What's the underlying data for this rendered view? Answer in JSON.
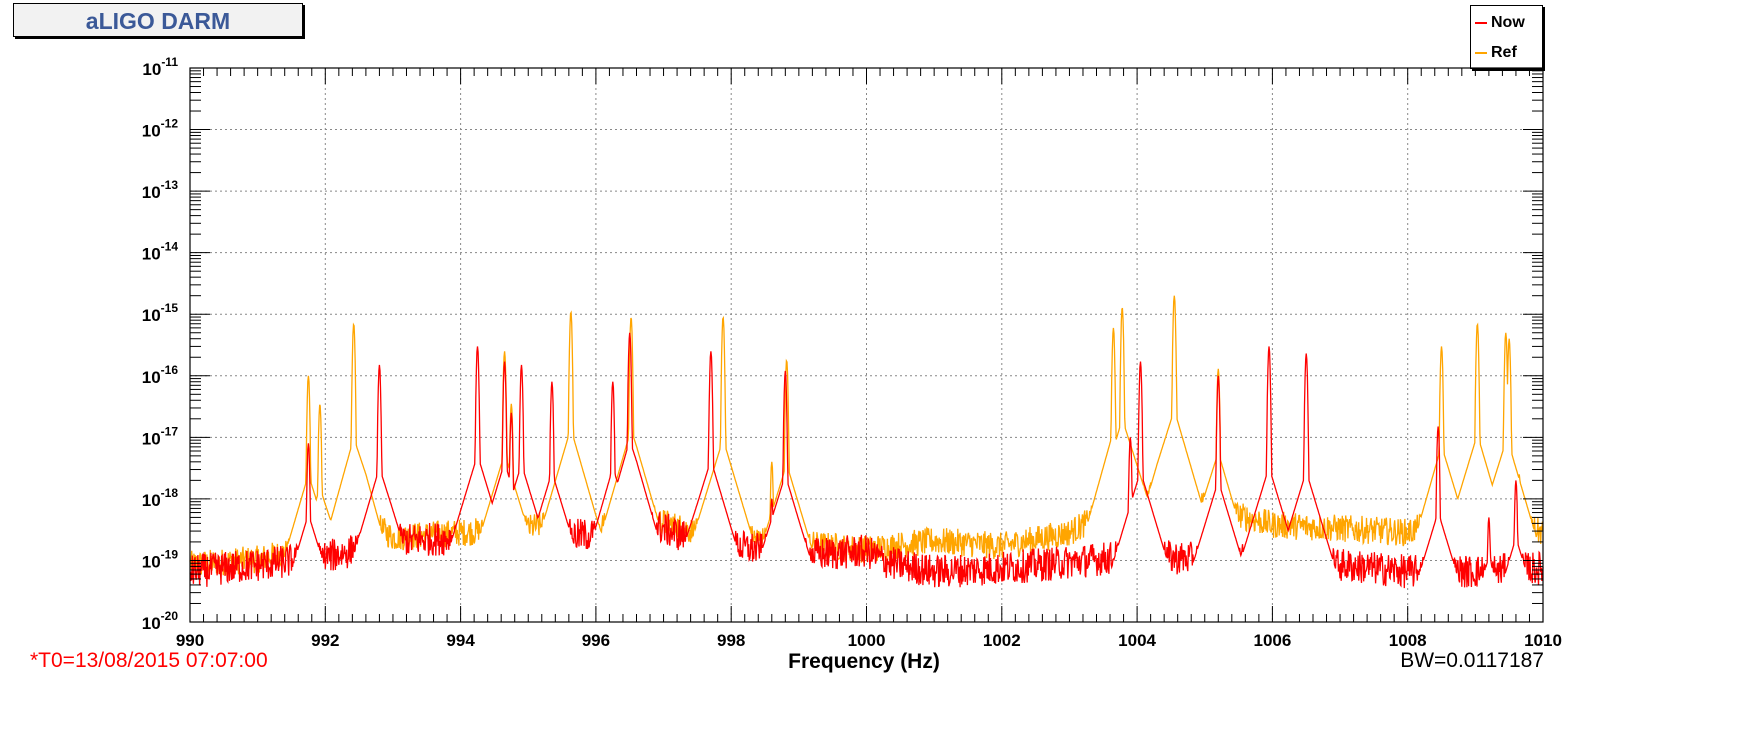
{
  "header": {
    "title": "aLIGO DARM"
  },
  "footer": {
    "t0": "*T0=13/08/2015 07:07:00",
    "bw": "BW=0.0117187"
  },
  "legend": [
    {
      "label": "Now",
      "color": "#ff0000"
    },
    {
      "label": "Ref",
      "color": "#ffa500"
    }
  ],
  "chart_data": {
    "type": "line",
    "title": "aLIGO DARM",
    "xlabel": "Frequency (Hz)",
    "ylabel": "",
    "xlim": [
      990,
      1010
    ],
    "ylim_exponent": [
      -20,
      -11
    ],
    "yscale": "log",
    "grid": true,
    "legend_position": "top-right",
    "x_ticks": [
      "990",
      "992",
      "994",
      "996",
      "998",
      "1000",
      "1002",
      "1004",
      "1006",
      "1008",
      "1010"
    ],
    "y_ticks": [
      {
        "base": "10",
        "exp": "-11"
      },
      {
        "base": "10",
        "exp": "-12"
      },
      {
        "base": "10",
        "exp": "-13"
      },
      {
        "base": "10",
        "exp": "-14"
      },
      {
        "base": "10",
        "exp": "-15"
      },
      {
        "base": "10",
        "exp": "-16"
      },
      {
        "base": "10",
        "exp": "-17"
      },
      {
        "base": "10",
        "exp": "-18"
      },
      {
        "base": "10",
        "exp": "-19"
      },
      {
        "base": "10",
        "exp": "-20"
      }
    ],
    "series": [
      {
        "name": "Now",
        "color": "#ff0000",
        "baseline": [
          [
            990,
            7e-20
          ],
          [
            991,
            9e-20
          ],
          [
            992,
            1.2e-19
          ],
          [
            993,
            2.2e-19
          ],
          [
            994,
            2.5e-19
          ],
          [
            995,
            2.5e-19
          ],
          [
            996,
            2.8e-19
          ],
          [
            996.6,
            5e-19
          ],
          [
            997.5,
            2.2e-19
          ],
          [
            999,
            1.3e-19
          ],
          [
            1000,
            1.5e-19
          ],
          [
            1000.3,
            1e-19
          ],
          [
            1001,
            7e-20
          ],
          [
            1002,
            8e-20
          ],
          [
            1003,
            1e-19
          ],
          [
            1004,
            1.3e-19
          ],
          [
            1005,
            1.1e-19
          ],
          [
            1006,
            1e-19
          ],
          [
            1007,
            9e-20
          ],
          [
            1008,
            7e-20
          ],
          [
            1009,
            7e-20
          ],
          [
            1010,
            8e-20
          ]
        ],
        "peaks": [
          [
            991.75,
            8e-18
          ],
          [
            992.8,
            1.5e-16
          ],
          [
            994.25,
            3e-16
          ],
          [
            994.65,
            1.7e-16
          ],
          [
            994.75,
            2.5e-17
          ],
          [
            994.9,
            1.5e-16
          ],
          [
            995.35,
            8e-17
          ],
          [
            996.25,
            8e-17
          ],
          [
            996.5,
            5e-16
          ],
          [
            997.7,
            2.5e-16
          ],
          [
            998.6,
            1e-18
          ],
          [
            998.8,
            1.2e-16
          ],
          [
            1003.9,
            1e-17
          ],
          [
            1004.05,
            1.7e-16
          ],
          [
            1005.2,
            1e-16
          ],
          [
            1005.95,
            3e-16
          ],
          [
            1006.5,
            2.3e-16
          ],
          [
            1008.45,
            1.5e-17
          ],
          [
            1009.2,
            5e-19
          ],
          [
            1009.6,
            2e-18
          ]
        ]
      },
      {
        "name": "Ref",
        "color": "#ffa500",
        "baseline": [
          [
            990,
            9e-20
          ],
          [
            991,
            1.1e-19
          ],
          [
            992,
            2e-19
          ],
          [
            992.6,
            5e-19
          ],
          [
            993,
            2.5e-19
          ],
          [
            994,
            3e-19
          ],
          [
            995,
            3.5e-19
          ],
          [
            995.6,
            5e-19
          ],
          [
            996,
            3.5e-19
          ],
          [
            996.6,
            6e-19
          ],
          [
            997.5,
            3e-19
          ],
          [
            999,
            2e-19
          ],
          [
            1000,
            1.6e-19
          ],
          [
            1001,
            2.2e-19
          ],
          [
            1002,
            1.8e-19
          ],
          [
            1003,
            3e-19
          ],
          [
            1003.7,
            8e-19
          ],
          [
            1004.3,
            1.3e-18
          ],
          [
            1005,
            8e-19
          ],
          [
            1006,
            4e-19
          ],
          [
            1007,
            3.5e-19
          ],
          [
            1008,
            3e-19
          ],
          [
            1008.5,
            5e-19
          ],
          [
            1009,
            5e-19
          ],
          [
            1010,
            3e-19
          ]
        ],
        "peaks": [
          [
            991.75,
            1e-16
          ],
          [
            991.92,
            3.5e-17
          ],
          [
            992.42,
            7e-16
          ],
          [
            994.65,
            2.5e-16
          ],
          [
            994.75,
            3.5e-17
          ],
          [
            995.63,
            1.1e-15
          ],
          [
            996.52,
            9e-16
          ],
          [
            997.88,
            9e-16
          ],
          [
            998.6,
            4e-18
          ],
          [
            998.82,
            1.8e-16
          ],
          [
            1003.65,
            6e-16
          ],
          [
            1003.78,
            1.3e-15
          ],
          [
            1004.55,
            2e-15
          ],
          [
            1005.2,
            1.3e-16
          ],
          [
            1008.5,
            3e-16
          ],
          [
            1009.03,
            7e-16
          ],
          [
            1009.45,
            5e-16
          ],
          [
            1009.5,
            4e-16
          ],
          [
            1009.65,
            2.5e-18
          ]
        ]
      }
    ]
  }
}
